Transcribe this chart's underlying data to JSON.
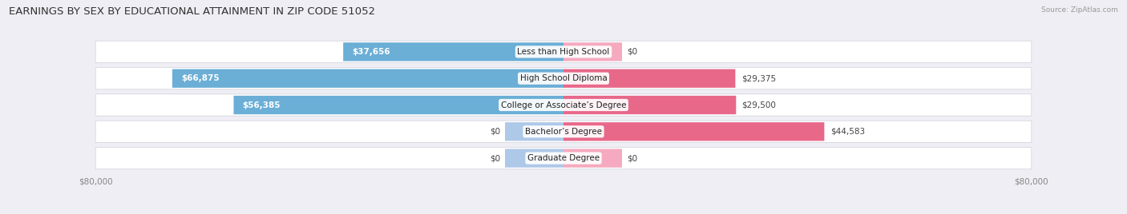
{
  "title": "EARNINGS BY SEX BY EDUCATIONAL ATTAINMENT IN ZIP CODE 51052",
  "source": "Source: ZipAtlas.com",
  "categories": [
    "Less than High School",
    "High School Diploma",
    "College or Associate’s Degree",
    "Bachelor’s Degree",
    "Graduate Degree"
  ],
  "male_values": [
    37656,
    66875,
    56385,
    0,
    0
  ],
  "female_values": [
    0,
    29375,
    29500,
    44583,
    0
  ],
  "male_color": "#6baed6",
  "female_color": "#e8688a",
  "male_color_light": "#aec8e8",
  "female_color_light": "#f5aabf",
  "max_value": 80000,
  "bg_color": "#eeeef4",
  "row_bg_color": "#f5f5f8",
  "row_bg_color2": "#e8e8ef",
  "title_fontsize": 9.5,
  "label_fontsize": 7.5,
  "value_fontsize": 7.5,
  "tick_fontsize": 7.5,
  "source_fontsize": 6.5
}
